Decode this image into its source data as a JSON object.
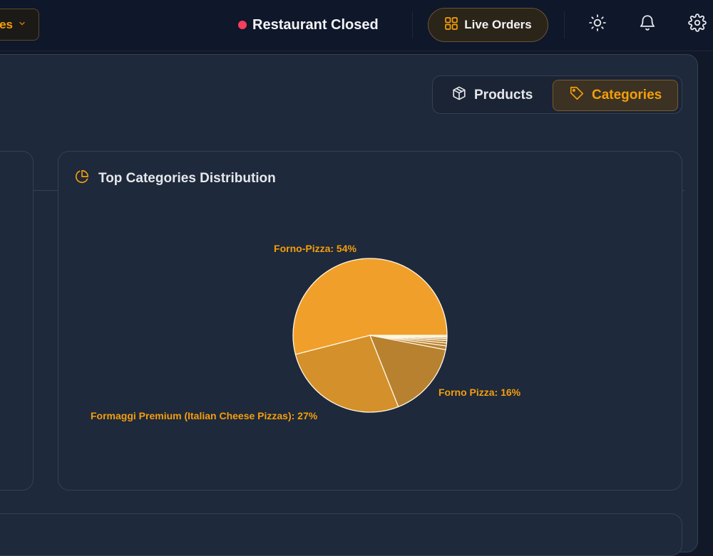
{
  "topbar": {
    "dropdown_label": "es",
    "status_text": "Restaurant Closed",
    "live_orders_label": "Live Orders",
    "status_color": "#f43f5e",
    "accent": "#f59e0b"
  },
  "icons": [
    "chevron-down-icon",
    "grid-icon",
    "sun-icon",
    "bell-icon",
    "gear-icon",
    "box-icon",
    "tag-icon",
    "pie-chart-icon"
  ],
  "tabs": {
    "products_label": "Products",
    "categories_label": "Categories",
    "active": "Categories"
  },
  "card": {
    "title": "Top Categories Distribution"
  },
  "chart_data": {
    "type": "pie",
    "title": "",
    "slices": [
      {
        "name": "Forno-Pizza",
        "value": 54,
        "label": "Forno-Pizza: 54%",
        "color": "#f0a02a"
      },
      {
        "name": "Formaggi Premium (Italian Cheese Pizzas)",
        "value": 27,
        "label": "Formaggi Premium (Italian Cheese Pizzas): 27%",
        "color": "#d4902a"
      },
      {
        "name": "Forno Pizza",
        "value": 16,
        "label": "Forno Pizza: 16%",
        "color": "#b8812f"
      },
      {
        "name": "",
        "value": 0.8,
        "label": "",
        "color": "#b8812f"
      },
      {
        "name": "",
        "value": 0.6,
        "label": "",
        "color": "#b8812f"
      },
      {
        "name": "",
        "value": 0.5,
        "label": "",
        "color": "#b8812f"
      },
      {
        "name": "",
        "value": 0.4,
        "label": "",
        "color": "#b8812f"
      },
      {
        "name": "",
        "value": 0.3,
        "label": "",
        "color": "#b8812f"
      },
      {
        "name": "",
        "value": 0.2,
        "label": "",
        "color": "#b8812f"
      },
      {
        "name": "",
        "value": 0.2,
        "label": "",
        "color": "#b8812f"
      }
    ]
  }
}
